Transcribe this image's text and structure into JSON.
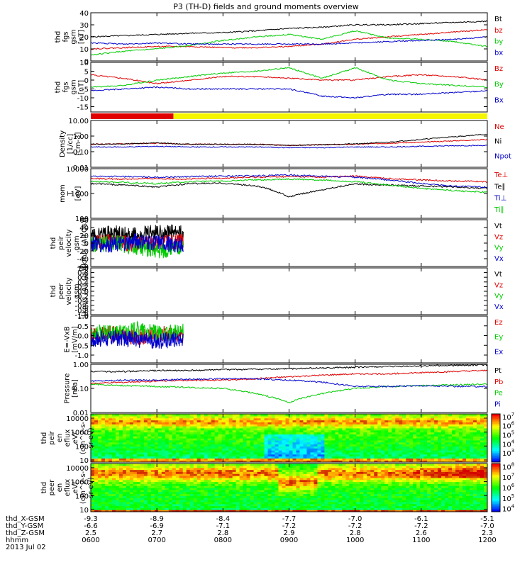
{
  "title": "P3 (TH-D) fields and ground moments overview",
  "colors": {
    "black": "#000000",
    "red": "#e00000",
    "green": "#00cc00",
    "blue": "#0000cc",
    "yellow": "#f5f500",
    "frame": "#000000"
  },
  "time_axis": {
    "ticks": [
      0,
      1,
      2,
      3,
      4,
      5,
      6
    ],
    "hhmm": [
      "0600",
      "0700",
      "0800",
      "0900",
      "1000",
      "1100",
      "1200"
    ],
    "rows": [
      {
        "label": "thd_X-GSM",
        "values": [
          "-9.3",
          "-8.9",
          "-8.4",
          "-7.7",
          "-7.0",
          "-6.1",
          "-5.1"
        ]
      },
      {
        "label": "thd_Y-GSM",
        "values": [
          "-6.6",
          "-6.9",
          "-7.1",
          "-7.2",
          "-7.2",
          "-7.2",
          "-7.0"
        ]
      },
      {
        "label": "thd_Z-GSM",
        "values": [
          "2.5",
          "2.7",
          "2.8",
          "2.9",
          "2.8",
          "2.6",
          "2.3"
        ]
      },
      {
        "label": "hhmm",
        "values": [
          "0600",
          "0700",
          "0800",
          "0900",
          "1000",
          "1100",
          "1200"
        ]
      }
    ],
    "date": "2013 Jul 02"
  },
  "chart_data": [
    {
      "type": "line",
      "id": "fgs-mag",
      "ylabel": [
        "thd",
        "fgs",
        "gsm",
        "[nT]"
      ],
      "ylim": [
        0,
        40
      ],
      "yscale": "linear",
      "yticks": [
        0,
        10,
        20,
        30,
        40
      ],
      "ytick_labels": [
        "0",
        "10",
        "20",
        "30",
        "40"
      ],
      "series": [
        {
          "name": "Bt",
          "color": "black",
          "x": [
            0,
            0.5,
            1,
            1.5,
            2,
            2.5,
            3,
            3.5,
            4,
            4.5,
            5,
            5.5,
            6
          ],
          "y": [
            20,
            21,
            22,
            23,
            23.5,
            25,
            27,
            28,
            30,
            30,
            31,
            32,
            33
          ]
        },
        {
          "name": "bz",
          "color": "red",
          "x": [
            0,
            0.5,
            1,
            1.5,
            2,
            2.5,
            3,
            3.5,
            4,
            4.5,
            5,
            5.5,
            6
          ],
          "y": [
            10,
            11,
            12,
            12,
            11,
            11,
            12,
            14,
            18,
            20,
            22,
            24,
            26
          ]
        },
        {
          "name": "by",
          "color": "green",
          "x": [
            0,
            0.5,
            1,
            1.5,
            2,
            2.5,
            3,
            3.5,
            4,
            4.5,
            5,
            5.5,
            6
          ],
          "y": [
            5,
            8,
            10,
            13,
            17,
            20,
            22,
            18,
            25,
            19,
            18,
            16,
            12
          ]
        },
        {
          "name": "bx",
          "color": "blue",
          "x": [
            0,
            0.5,
            1,
            1.5,
            2,
            2.5,
            3,
            3.5,
            4,
            4.5,
            5,
            5.5,
            6
          ],
          "y": [
            15,
            14,
            15,
            14,
            14,
            14,
            14,
            14,
            15,
            16,
            17,
            18,
            20
          ]
        }
      ]
    },
    {
      "type": "line",
      "id": "fgs-comp",
      "ylabel": [
        "thd",
        "fgs",
        "gsm",
        "[nT]"
      ],
      "ylim": [
        -18,
        10
      ],
      "yscale": "linear",
      "yticks": [
        -15,
        -10,
        -5,
        0,
        5,
        10
      ],
      "ytick_labels": [
        "-15",
        "-10",
        "-5",
        "0",
        "5",
        "10"
      ],
      "series": [
        {
          "name": "Bz",
          "color": "red",
          "x": [
            0,
            0.5,
            1,
            1.5,
            2,
            2.5,
            3,
            3.5,
            4,
            4.5,
            5,
            5.5,
            6
          ],
          "y": [
            3,
            1,
            -2,
            0,
            2,
            2,
            1,
            0,
            0,
            2,
            3,
            2,
            0
          ]
        },
        {
          "name": "By",
          "color": "green",
          "x": [
            0,
            0.5,
            1,
            1.5,
            2,
            2.5,
            3,
            3.5,
            4,
            4.5,
            5,
            5.5,
            6
          ],
          "y": [
            -4,
            -3,
            0,
            2,
            4,
            5,
            7,
            1,
            7,
            0,
            -2,
            -3,
            -4
          ]
        },
        {
          "name": "Bx",
          "color": "blue",
          "x": [
            0,
            0.5,
            1,
            1.5,
            2,
            2.5,
            3,
            3.5,
            4,
            4.5,
            5,
            5.5,
            6
          ],
          "y": [
            -6,
            -5,
            -4,
            -5,
            -5,
            -5,
            -5,
            -9,
            -10,
            -8,
            -8,
            -7,
            -6
          ]
        }
      ]
    },
    {
      "type": "bar",
      "id": "mode-bar",
      "segments": [
        {
          "start": 0,
          "end": 1.25,
          "color": "red"
        },
        {
          "start": 1.25,
          "end": 6,
          "color": "yellow"
        }
      ]
    },
    {
      "type": "line",
      "id": "density",
      "ylabel": [
        "Density",
        "[1/cc]",
        "[cm-3]"
      ],
      "ylim": [
        0.01,
        10
      ],
      "yscale": "log",
      "yticks": [
        0.01,
        0.1,
        1,
        10
      ],
      "ytick_labels": [
        "0.01",
        "0.10",
        "1.00",
        "10.00"
      ],
      "series": [
        {
          "name": "Ne",
          "color": "red",
          "x": [
            0,
            0.5,
            1,
            1.5,
            2,
            2.5,
            3,
            3.5,
            4,
            4.5,
            5,
            5.5,
            6
          ],
          "y": [
            0.3,
            0.32,
            0.35,
            0.3,
            0.3,
            0.3,
            0.25,
            0.28,
            0.3,
            0.35,
            0.4,
            0.5,
            0.6
          ]
        },
        {
          "name": "Ni",
          "color": "black",
          "x": [
            0,
            0.5,
            1,
            1.5,
            2,
            2.5,
            3,
            3.5,
            4,
            4.5,
            5,
            5.5,
            6
          ],
          "y": [
            0.3,
            0.32,
            0.36,
            0.3,
            0.3,
            0.3,
            0.25,
            0.28,
            0.32,
            0.4,
            0.6,
            0.9,
            1.3
          ]
        },
        {
          "name": "Npot",
          "color": "blue",
          "x": [
            0,
            0.5,
            1,
            1.5,
            2,
            2.5,
            3,
            3.5,
            4,
            4.5,
            5,
            5.5,
            6
          ],
          "y": [
            0.2,
            0.2,
            0.22,
            0.2,
            0.2,
            0.2,
            0.18,
            0.18,
            0.2,
            0.2,
            0.22,
            0.24,
            0.25
          ]
        }
      ]
    },
    {
      "type": "line",
      "id": "temperature",
      "ylabel": [
        "mom",
        "T",
        "[eV]"
      ],
      "ylim": [
        100,
        10000
      ],
      "yscale": "log",
      "yticks": [
        100,
        1000,
        10000
      ],
      "ytick_labels": [
        "100",
        "1000",
        "10000"
      ],
      "series": [
        {
          "name": "Te⊥",
          "color": "red",
          "x": [
            0,
            0.5,
            1,
            1.5,
            2,
            2.5,
            3,
            3.5,
            4,
            4.5,
            5,
            5.5,
            6
          ],
          "y": [
            4000,
            3800,
            4000,
            3800,
            4200,
            4500,
            4800,
            4500,
            5000,
            4000,
            3500,
            3200,
            3000
          ]
        },
        {
          "name": "Te∥",
          "color": "black",
          "x": [
            0,
            0.5,
            1,
            1.5,
            2,
            2.5,
            3,
            3.5,
            4,
            4.5,
            5,
            5.5,
            6
          ],
          "y": [
            2500,
            2200,
            1800,
            2500,
            2600,
            2000,
            700,
            1400,
            2400,
            2200,
            2000,
            1800,
            1600
          ]
        },
        {
          "name": "Ti⊥",
          "color": "blue",
          "x": [
            0,
            0.5,
            1,
            1.5,
            2,
            2.5,
            3,
            3.5,
            4,
            4.5,
            5,
            5.5,
            6
          ],
          "y": [
            5000,
            4800,
            4500,
            4800,
            5000,
            5200,
            5500,
            5000,
            4500,
            3500,
            2500,
            2000,
            1800
          ]
        },
        {
          "name": "Ti∥",
          "color": "green",
          "x": [
            0,
            0.5,
            1,
            1.5,
            2,
            2.5,
            3,
            3.5,
            4,
            4.5,
            5,
            5.5,
            6
          ],
          "y": [
            3000,
            2800,
            2500,
            3000,
            3200,
            3500,
            3800,
            3500,
            3000,
            2200,
            1600,
            1300,
            1100
          ]
        }
      ]
    },
    {
      "type": "line",
      "id": "peir-velocity",
      "ylabel": [
        "thd",
        "peir",
        "velocity",
        "gsm",
        "[km/s (All Qs)]"
      ],
      "ylim": [
        -60,
        60
      ],
      "yscale": "linear",
      "yticks": [
        -60,
        -40,
        -20,
        0,
        20,
        40,
        60
      ],
      "ytick_labels": [
        "-60",
        "-40",
        "-20",
        "0",
        "20",
        "40",
        "60"
      ],
      "x_extent": [
        0,
        1.4
      ],
      "series": [
        {
          "name": "Vt",
          "color": "black",
          "x": [
            0,
            0.35,
            0.7,
            1.05,
            1.4
          ],
          "y": [
            20,
            25,
            20,
            30,
            25
          ]
        },
        {
          "name": "Vz",
          "color": "red",
          "x": [
            0,
            0.35,
            0.7,
            1.05,
            1.4
          ],
          "y": [
            0,
            5,
            -5,
            0,
            5
          ]
        },
        {
          "name": "Vy",
          "color": "green",
          "x": [
            0,
            0.35,
            0.7,
            1.05,
            1.4
          ],
          "y": [
            -5,
            0,
            -10,
            -20,
            -10
          ]
        },
        {
          "name": "Vx",
          "color": "blue",
          "x": [
            0,
            0.35,
            0.7,
            1.05,
            1.4
          ],
          "y": [
            0,
            -5,
            5,
            0,
            -5
          ]
        }
      ]
    },
    {
      "type": "line",
      "id": "peer-velocity",
      "ylabel": [
        "thd",
        "peer",
        "velocity",
        "gsm",
        "[km/s (All Qs)]"
      ],
      "ylim": [
        -1,
        1
      ],
      "yscale": "linear",
      "yticks": [
        -1,
        -0.8,
        -0.6,
        -0.4,
        -0.2,
        0,
        0.2,
        0.4,
        0.6,
        0.8,
        1
      ],
      "ytick_labels": [
        "-1.0",
        "-0.8",
        "-0.6",
        "-0.4",
        "-0.2",
        "0.0",
        "0.2",
        "0.4",
        "0.6",
        "0.8",
        "1.0"
      ],
      "series": [
        {
          "name": "Vt",
          "color": "black",
          "x": [],
          "y": []
        },
        {
          "name": "Vz",
          "color": "red",
          "x": [],
          "y": []
        },
        {
          "name": "Vy",
          "color": "green",
          "x": [],
          "y": []
        },
        {
          "name": "Vx",
          "color": "blue",
          "x": [],
          "y": []
        }
      ]
    },
    {
      "type": "line",
      "id": "efield",
      "ylabel": [
        "E=-VxB",
        "[mV/m]"
      ],
      "ylim": [
        -1.4,
        1.0
      ],
      "yscale": "linear",
      "yticks": [
        -1,
        -0.5,
        0,
        0.5,
        1
      ],
      "ytick_labels": [
        "-1.0",
        "-0.5",
        "0.0",
        "0.5",
        "1.0"
      ],
      "x_extent": [
        0,
        1.4
      ],
      "series": [
        {
          "name": "Ez",
          "color": "red",
          "x": [
            0,
            0.35,
            0.7,
            1.05,
            1.4
          ],
          "y": [
            0,
            0.1,
            -0.1,
            0.1,
            0
          ]
        },
        {
          "name": "Ey",
          "color": "green",
          "x": [
            0,
            0.35,
            0.7,
            1.05,
            1.4
          ],
          "y": [
            0.2,
            0.1,
            0.3,
            0.1,
            0.2
          ]
        },
        {
          "name": "Ex",
          "color": "blue",
          "x": [
            0,
            0.35,
            0.7,
            1.05,
            1.4
          ],
          "y": [
            -0.2,
            -0.1,
            -0.2,
            -0.3,
            -0.1
          ]
        }
      ]
    },
    {
      "type": "line",
      "id": "pressure",
      "ylabel": [
        "Pressure",
        "[nPa]"
      ],
      "ylim": [
        0.01,
        1
      ],
      "yscale": "log",
      "yticks": [
        0.01,
        0.1,
        1
      ],
      "ytick_labels": [
        "0.01",
        "0.10",
        "1.00"
      ],
      "series": [
        {
          "name": "Pt",
          "color": "black",
          "x": [
            0,
            0.5,
            1,
            1.5,
            2,
            2.5,
            3,
            3.5,
            4,
            4.5,
            5,
            5.5,
            6
          ],
          "y": [
            0.5,
            0.5,
            0.55,
            0.55,
            0.6,
            0.62,
            0.65,
            0.7,
            0.75,
            0.8,
            0.85,
            0.9,
            0.95
          ]
        },
        {
          "name": "Pb",
          "color": "red",
          "x": [
            0,
            0.5,
            1,
            1.5,
            2,
            2.5,
            3,
            3.5,
            4,
            4.5,
            5,
            5.5,
            6
          ],
          "y": [
            0.16,
            0.18,
            0.2,
            0.22,
            0.22,
            0.25,
            0.3,
            0.35,
            0.4,
            0.4,
            0.45,
            0.5,
            0.55
          ]
        },
        {
          "name": "Pe",
          "color": "green",
          "x": [
            0,
            0.5,
            1,
            1.5,
            2,
            2.5,
            3,
            3.5,
            4,
            4.5,
            5,
            5.5,
            6
          ],
          "y": [
            0.15,
            0.13,
            0.12,
            0.11,
            0.1,
            0.06,
            0.025,
            0.06,
            0.1,
            0.12,
            0.13,
            0.14,
            0.15
          ]
        },
        {
          "name": "Pi",
          "color": "blue",
          "x": [
            0,
            0.5,
            1,
            1.5,
            2,
            2.5,
            3,
            3.5,
            4,
            4.5,
            5,
            5.5,
            6
          ],
          "y": [
            0.2,
            0.22,
            0.22,
            0.24,
            0.25,
            0.25,
            0.22,
            0.18,
            0.12,
            0.12,
            0.13,
            0.12,
            0.12
          ]
        }
      ]
    },
    {
      "type": "heatmap",
      "id": "peir-spectrogram",
      "ylabel": [
        "thd",
        "peir",
        "en",
        "eflux",
        "eV/",
        "(cm^2-s-",
        "sr-eV)"
      ],
      "ylim": [
        7,
        20000
      ],
      "yscale": "log",
      "yticks": [
        10,
        100,
        1000,
        10000
      ],
      "ytick_labels": [
        "10",
        "100",
        "1000",
        "10000"
      ],
      "colorbar": {
        "range": [
          100,
          20000000
        ],
        "tick_exps": [
          3,
          4,
          5,
          6,
          7
        ],
        "base": "10"
      },
      "description": "ion energy flux: high flux near 5-10 keV band, low flux below 100 eV around 0850-0930"
    },
    {
      "type": "heatmap",
      "id": "peer-spectrogram",
      "ylabel": [
        "thd",
        "peer",
        "en",
        "eflux",
        "eV/",
        "(cm^2-s-",
        "sr-eV)"
      ],
      "ylim": [
        7,
        20000
      ],
      "yscale": "log",
      "yticks": [
        10,
        100,
        1000,
        10000
      ],
      "ytick_labels": [
        "10",
        "100",
        "1000",
        "10000"
      ],
      "colorbar": {
        "range": [
          5000,
          200000000
        ],
        "tick_exps": [
          4,
          5,
          6,
          7,
          8
        ],
        "base": "10"
      },
      "description": "electron energy flux: red/orange peak near 1-10 keV"
    }
  ]
}
